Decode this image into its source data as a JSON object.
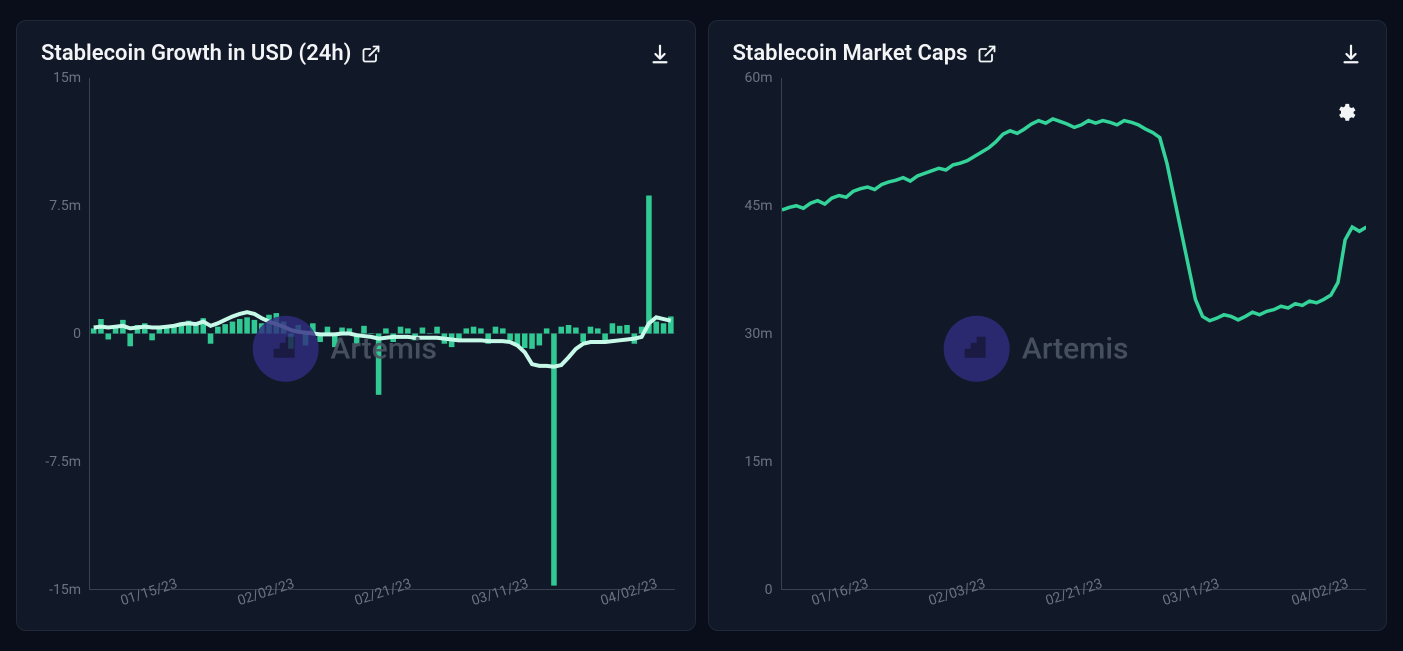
{
  "watermark": {
    "label": "Artemis",
    "badge_bg": "#312e81",
    "text_color": "#4b5563"
  },
  "chart1": {
    "title": "Stablecoin Growth in USD (24h)",
    "type": "bar+line",
    "bar_color": "#34d399",
    "line_color": "#c7f9e9",
    "axis_color": "#374151",
    "tick_color": "#6b7280",
    "tick_fontsize": 14,
    "title_fontsize": 22,
    "background_color": "#111827",
    "ylim": [
      -15,
      15
    ],
    "yticks": [
      -15,
      -7.5,
      0,
      7.5,
      15
    ],
    "ytick_labels": [
      "-15m",
      "-7.5m",
      "0",
      "7.5m",
      "15m"
    ],
    "xticks": [
      0.1,
      0.3,
      0.5,
      0.7,
      0.92
    ],
    "xtick_labels": [
      "01/15/23",
      "02/02/23",
      "02/21/23",
      "03/11/23",
      "04/02/23"
    ],
    "bars": [
      0.3,
      0.85,
      -0.35,
      0.35,
      0.8,
      -0.75,
      0.5,
      0.6,
      -0.4,
      0.3,
      0.35,
      0.45,
      0.65,
      0.75,
      0.55,
      0.9,
      -0.6,
      0.4,
      0.55,
      0.7,
      0.85,
      0.95,
      0.8,
      0.6,
      1.1,
      1.2,
      0.7,
      -0.9,
      0.5,
      -0.7,
      0.6,
      -0.5,
      0.4,
      -0.8,
      0.35,
      0.3,
      -0.6,
      0.45,
      0.0,
      -3.6,
      0.3,
      -0.5,
      0.4,
      0.3,
      -0.4,
      0.35,
      0.0,
      0.4,
      -0.6,
      -0.8,
      -0.5,
      0.3,
      0.4,
      0.3,
      -0.6,
      0.4,
      0.3,
      -0.4,
      -0.75,
      -0.85,
      -0.9,
      -0.7,
      0.3,
      -14.8,
      0.4,
      0.5,
      0.35,
      -0.5,
      0.4,
      0.3,
      -0.4,
      0.6,
      0.45,
      0.5,
      -0.6,
      0.4,
      8.1,
      0.7,
      0.6,
      1.0
    ],
    "line": [
      0.35,
      0.4,
      0.35,
      0.4,
      0.45,
      0.3,
      0.35,
      0.4,
      0.35,
      0.35,
      0.4,
      0.45,
      0.55,
      0.6,
      0.55,
      0.7,
      0.45,
      0.6,
      0.8,
      1.0,
      1.15,
      1.25,
      1.15,
      0.9,
      0.7,
      0.55,
      0.4,
      0.2,
      0.1,
      0.05,
      0.0,
      -0.05,
      -0.05,
      -0.05,
      0.0,
      0.0,
      -0.1,
      -0.15,
      -0.2,
      -0.3,
      -0.25,
      -0.2,
      -0.2,
      -0.2,
      -0.25,
      -0.25,
      -0.25,
      -0.25,
      -0.3,
      -0.35,
      -0.4,
      -0.4,
      -0.4,
      -0.4,
      -0.45,
      -0.45,
      -0.45,
      -0.5,
      -0.7,
      -1.1,
      -1.8,
      -1.9,
      -1.9,
      -1.95,
      -1.85,
      -1.4,
      -0.9,
      -0.6,
      -0.5,
      -0.5,
      -0.5,
      -0.45,
      -0.4,
      -0.35,
      -0.3,
      -0.2,
      0.6,
      0.95,
      0.85,
      0.75
    ]
  },
  "chart2": {
    "title": "Stablecoin Market Caps",
    "type": "line",
    "line_color": "#34d399",
    "line_width": 2,
    "axis_color": "#374151",
    "tick_color": "#6b7280",
    "tick_fontsize": 14,
    "title_fontsize": 22,
    "background_color": "#111827",
    "ylim": [
      0,
      60
    ],
    "yticks": [
      0,
      15,
      30,
      45,
      60
    ],
    "ytick_labels": [
      "0",
      "15m",
      "30m",
      "45m",
      "60m"
    ],
    "xticks": [
      0.1,
      0.3,
      0.5,
      0.7,
      0.92
    ],
    "xtick_labels": [
      "01/16/23",
      "02/03/23",
      "02/21/23",
      "03/11/23",
      "04/02/23"
    ],
    "line": [
      44.5,
      44.8,
      45.0,
      44.7,
      45.3,
      45.6,
      45.2,
      45.9,
      46.2,
      46.0,
      46.7,
      47.0,
      47.2,
      46.9,
      47.5,
      47.8,
      48.0,
      48.3,
      47.9,
      48.5,
      48.8,
      49.1,
      49.4,
      49.2,
      49.8,
      50.0,
      50.3,
      50.8,
      51.3,
      51.8,
      52.5,
      53.4,
      53.8,
      53.5,
      54.0,
      54.6,
      55.0,
      54.7,
      55.2,
      54.9,
      54.6,
      54.2,
      54.5,
      55.0,
      54.7,
      55.0,
      54.8,
      54.5,
      55.0,
      54.8,
      54.5,
      54.0,
      53.6,
      53.0,
      50.0,
      46.0,
      42.0,
      38.0,
      34.0,
      32.0,
      31.5,
      31.8,
      32.2,
      32.0,
      31.6,
      32.0,
      32.5,
      32.2,
      32.6,
      32.8,
      33.2,
      33.0,
      33.5,
      33.3,
      33.8,
      33.6,
      34.0,
      34.5,
      36.0,
      41.0,
      42.5,
      42.0,
      42.5
    ]
  }
}
